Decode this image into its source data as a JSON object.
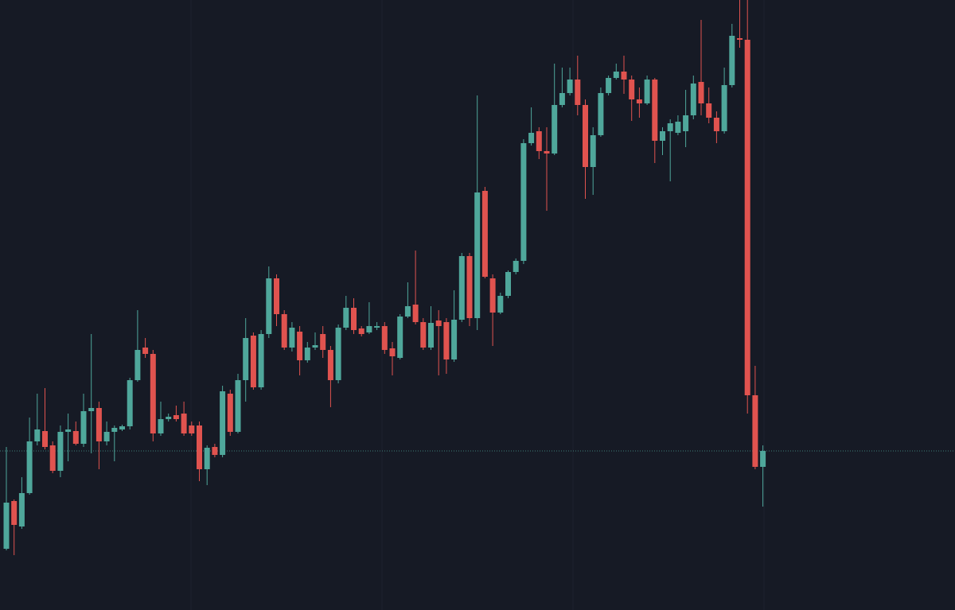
{
  "chart_data": {
    "type": "candlestick",
    "up_color": "#4fa79b",
    "down_color": "#e0534f",
    "background": "#161a25",
    "last_price_line": true,
    "ylim": [
      0,
      767
    ],
    "open": [
      77,
      137,
      105,
      147,
      212,
      225,
      207,
      175,
      224,
      225,
      209,
      250,
      254,
      212,
      224,
      227,
      231,
      289,
      330,
      322,
      222,
      240,
      245,
      247,
      232,
      232,
      177,
      205,
      195,
      272,
      224,
      289,
      345,
      280,
      347,
      417,
      372,
      330,
      350,
      314,
      330,
      347,
      327,
      289,
      355,
      380,
      354,
      349,
      355,
      357,
      329,
      317,
      369,
      384,
      362,
      330,
      364,
      362,
      315,
      365,
      445,
      367,
      527,
      417,
      374,
      395,
      425,
      439,
      587,
      602,
      577,
      574,
      635,
      650,
      667,
      635,
      557,
      597,
      650,
      669,
      677,
      667,
      642,
      637,
      667,
      590,
      602,
      600,
      602,
      622,
      664,
      637,
      619,
      602,
      660,
      719,
      717,
      270,
      180
    ],
    "high": [
      205,
      139,
      167,
      242,
      272,
      279,
      212,
      232,
      247,
      237,
      272,
      347,
      262,
      237,
      232,
      233,
      292,
      377,
      342,
      327,
      262,
      247,
      257,
      262,
      237,
      237,
      207,
      209,
      282,
      277,
      297,
      367,
      349,
      352,
      432,
      422,
      377,
      362,
      357,
      337,
      349,
      357,
      332,
      359,
      395,
      392,
      357,
      387,
      362,
      362,
      337,
      372,
      412,
      452,
      367,
      382,
      377,
      367,
      402,
      449,
      449,
      647,
      532,
      422,
      399,
      427,
      442,
      592,
      632,
      607,
      607,
      687,
      682,
      682,
      697,
      642,
      607,
      657,
      672,
      687,
      697,
      672,
      657,
      672,
      669,
      607,
      617,
      622,
      654,
      672,
      742,
      657,
      627,
      682,
      737,
      767,
      767,
      307,
      207
    ],
    "low": [
      75,
      69,
      102,
      145,
      207,
      202,
      172,
      167,
      187,
      207,
      205,
      197,
      177,
      207,
      187,
      225,
      227,
      287,
      317,
      212,
      219,
      237,
      237,
      219,
      219,
      162,
      157,
      192,
      192,
      219,
      222,
      262,
      277,
      277,
      342,
      357,
      327,
      325,
      295,
      311,
      327,
      317,
      255,
      285,
      352,
      347,
      344,
      347,
      352,
      322,
      295,
      315,
      367,
      359,
      327,
      327,
      295,
      297,
      312,
      362,
      357,
      352,
      417,
      332,
      372,
      392,
      422,
      435,
      584,
      567,
      502,
      572,
      632,
      647,
      622,
      517,
      522,
      595,
      647,
      667,
      649,
      615,
      619,
      635,
      562,
      572,
      539,
      597,
      582,
      617,
      622,
      612,
      587,
      599,
      657,
      707,
      247,
      177,
      130
    ],
    "close": [
      135,
      107,
      147,
      212,
      227,
      205,
      175,
      224,
      227,
      209,
      250,
      254,
      212,
      224,
      229,
      231,
      289,
      327,
      322,
      222,
      240,
      243,
      240,
      222,
      222,
      177,
      204,
      195,
      275,
      224,
      289,
      342,
      280,
      347,
      417,
      372,
      330,
      355,
      314,
      330,
      333,
      327,
      289,
      355,
      380,
      352,
      347,
      357,
      357,
      327,
      319,
      369,
      382,
      362,
      330,
      361,
      357,
      315,
      365,
      445,
      367,
      525,
      419,
      374,
      395,
      425,
      439,
      587,
      600,
      577,
      574,
      635,
      650,
      667,
      635,
      557,
      597,
      650,
      669,
      677,
      667,
      642,
      637,
      667,
      590,
      602,
      612,
      614,
      622,
      662,
      637,
      619,
      602,
      660,
      722,
      717,
      270,
      180,
      200
    ]
  }
}
